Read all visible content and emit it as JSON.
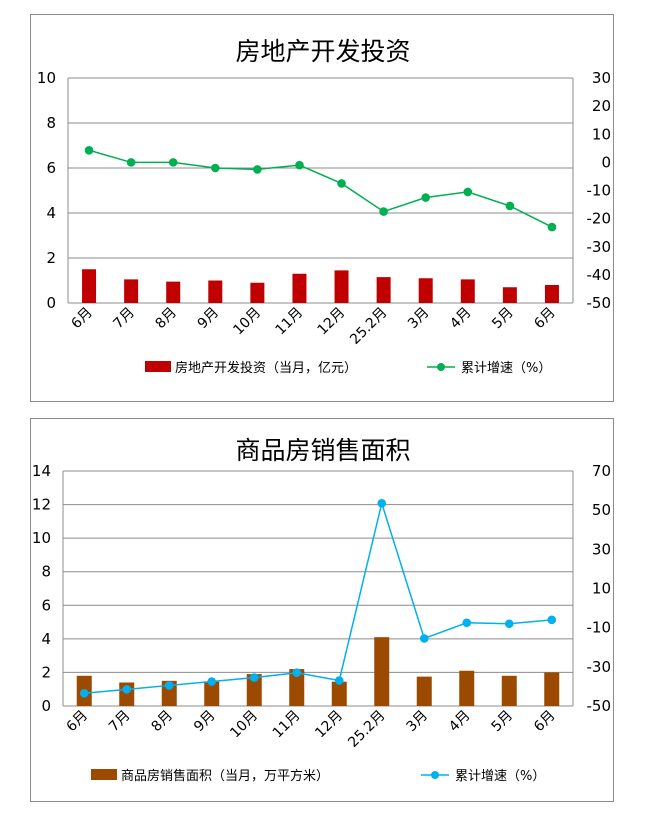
{
  "chart_data": [
    {
      "type": "bar",
      "title": "房地产开发投资",
      "categories": [
        "6月",
        "7月",
        "8月",
        "9月",
        "10月",
        "11月",
        "12月",
        "25.2月",
        "3月",
        "4月",
        "5月",
        "6月"
      ],
      "series": [
        {
          "name": "房地产开发投资（当月，亿元）",
          "type": "bar",
          "axis": "left",
          "color": "#c00000",
          "values": [
            1.5,
            1.05,
            0.95,
            1.0,
            0.9,
            1.3,
            1.45,
            1.15,
            1.1,
            1.05,
            0.7,
            0.8
          ]
        },
        {
          "name": "累计增速（%）",
          "type": "line",
          "axis": "right",
          "color": "#00b050",
          "values": [
            4.3,
            0,
            0,
            -2,
            -2.5,
            -1,
            -7.5,
            -17.5,
            -12.5,
            -10.5,
            -15.5,
            -23
          ]
        }
      ],
      "ylim": [
        0,
        10
      ],
      "y2lim": [
        -50,
        30
      ],
      "yticks": [
        "0",
        "2",
        "4",
        "6",
        "8",
        "10"
      ],
      "y2ticks": [
        "-50",
        "-40",
        "-30",
        "-20",
        "-10",
        "0",
        "10",
        "20",
        "30"
      ],
      "grid": "horizontal",
      "legend": "bottom"
    },
    {
      "type": "bar",
      "title": "商品房销售面积",
      "categories": [
        "6月",
        "7月",
        "8月",
        "9月",
        "10月",
        "11月",
        "12月",
        "25.2月",
        "3月",
        "4月",
        "5月",
        "6月"
      ],
      "series": [
        {
          "name": "商品房销售面积（当月，万平方米）",
          "type": "bar",
          "axis": "left",
          "color": "#9c4a00",
          "values": [
            1.8,
            1.4,
            1.5,
            1.45,
            1.9,
            2.2,
            1.45,
            4.1,
            1.75,
            2.1,
            1.8,
            2.0
          ]
        },
        {
          "name": "累计增速（%）",
          "type": "line",
          "axis": "right",
          "color": "#00b0f0",
          "values": [
            -43.5,
            -41.5,
            -39.5,
            -37.5,
            -35.5,
            -33,
            -37,
            53.5,
            -15.5,
            -7.5,
            -8,
            -6
          ]
        }
      ],
      "ylim": [
        0,
        14
      ],
      "y2lim": [
        -50,
        70
      ],
      "yticks": [
        "0",
        "2",
        "4",
        "6",
        "8",
        "10",
        "12",
        "14"
      ],
      "y2ticks": [
        "-50",
        "-30",
        "-10",
        "10",
        "30",
        "50",
        "70"
      ],
      "grid": "horizontal",
      "legend": "bottom"
    }
  ]
}
